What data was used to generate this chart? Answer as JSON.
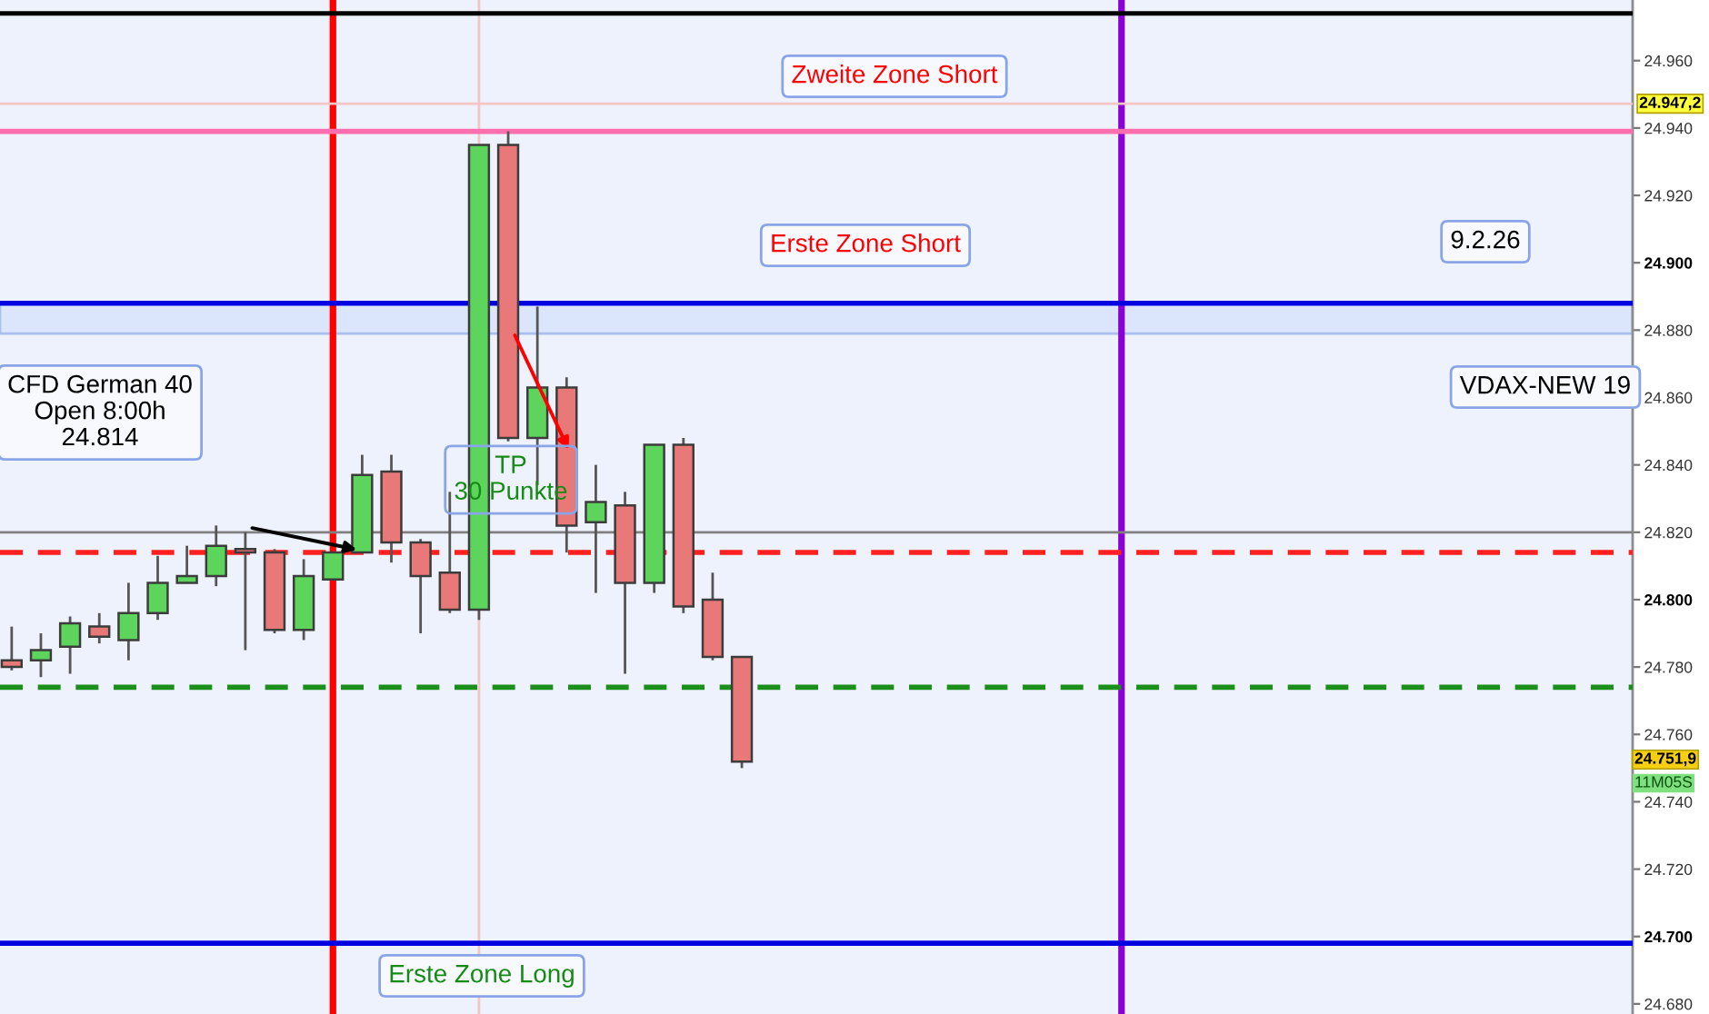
{
  "chart_data": {
    "type": "candlestick",
    "categories": [
      null,
      null,
      null,
      null,
      null,
      null,
      null,
      null,
      null,
      null,
      null,
      null,
      null,
      null,
      null,
      null,
      null,
      null,
      null,
      null,
      null,
      null,
      null,
      null,
      null,
      null,
      null,
      null,
      null,
      null,
      null,
      null,
      null,
      null,
      null,
      null,
      null,
      null,
      null,
      null,
      null,
      null,
      null,
      null,
      null,
      null,
      null,
      null,
      null,
      null,
      null,
      null,
      null,
      null,
      null,
      null
    ],
    "ohlc": [
      [
        24782,
        24792,
        24779,
        24780
      ],
      [
        24782,
        24790,
        24777,
        24785
      ],
      [
        24786,
        24795,
        24778,
        24793
      ],
      [
        24792,
        24796,
        24787,
        24789
      ],
      [
        24788,
        24805,
        24782,
        24796
      ],
      [
        24796,
        24813,
        24794,
        24805
      ],
      [
        24805,
        24816,
        24805,
        24807
      ],
      [
        24807,
        24822,
        24804,
        24816
      ],
      [
        24815,
        24820,
        24785,
        24814
      ],
      [
        24814,
        24815,
        24790,
        24791
      ],
      [
        24791,
        24812,
        24788,
        24807
      ],
      [
        24806,
        24814,
        24806,
        24814
      ],
      [
        24814,
        24843,
        24814,
        24837
      ],
      [
        24838,
        24843,
        24811,
        24817
      ],
      [
        24817,
        24818,
        24790,
        24807
      ],
      [
        24808,
        24832,
        24796,
        24797
      ],
      [
        24797,
        24935,
        24794,
        24935
      ],
      [
        24935,
        24939,
        24847,
        24848
      ],
      [
        24848,
        24887,
        24834,
        24863
      ],
      [
        24863,
        24866,
        24814,
        24822
      ],
      [
        24823,
        24840,
        24802,
        24829
      ],
      [
        24828,
        24832,
        24778,
        24805
      ],
      [
        24805,
        24846,
        24802,
        24846
      ],
      [
        24846,
        24848,
        24796,
        24798
      ],
      [
        24800,
        24808,
        24782,
        24783
      ],
      [
        24783,
        24783,
        24750,
        24751.9
      ],
      null,
      null,
      null,
      null,
      null,
      null,
      null,
      null,
      null,
      null,
      null,
      null,
      null,
      null,
      null,
      null,
      null,
      null,
      null,
      null,
      null,
      null,
      null,
      null,
      null,
      null,
      null,
      null,
      null,
      null
    ],
    "colors": [
      "#e97878",
      "#5dd55d",
      "#5dd55d",
      "#e97878",
      "#5dd55d",
      "#5dd55d",
      "#5dd55d",
      "#5dd55d",
      "#e97878",
      "#e97878",
      "#5dd55d",
      "#5dd55d",
      "#5dd55d",
      "#e97878",
      "#e97878",
      "#e97878",
      "#5dd55d",
      "#e97878",
      "#5dd55d",
      "#e97878",
      "#5dd55d",
      "#e97878",
      "#5dd55d",
      "#e97878",
      "#e97878",
      "#e97878",
      null,
      null,
      null,
      null,
      null,
      null,
      null,
      null,
      null,
      null,
      null,
      null,
      null,
      null,
      null,
      null,
      null,
      null,
      null,
      null,
      null,
      null,
      null,
      null,
      null,
      null,
      null,
      null,
      null,
      null
    ],
    "ylim": [
      24677,
      24978
    ],
    "yticks": [
      {
        "value": 24680,
        "label": "24.680"
      },
      {
        "value": 24700,
        "label": "24.700"
      },
      {
        "value": 24720,
        "label": "24.720"
      },
      {
        "value": 24740,
        "label": "24.740"
      },
      {
        "value": 24760,
        "label": "24.760"
      },
      {
        "value": 24780,
        "label": "24.780"
      },
      {
        "value": 24800,
        "label": "24.800"
      },
      {
        "value": 24820,
        "label": "24.820"
      },
      {
        "value": 24840,
        "label": "24.840"
      },
      {
        "value": 24860,
        "label": "24.860"
      },
      {
        "value": 24880,
        "label": "24.880"
      },
      {
        "value": 24900,
        "label": "24.900"
      },
      {
        "value": 24920,
        "label": "24.920"
      },
      {
        "value": 24940,
        "label": "24.940"
      },
      {
        "value": 24960,
        "label": "24.960"
      }
    ],
    "tick_labels": "y",
    "ref_lines": [
      {
        "axis": "y",
        "value": 24974,
        "color": "#000000"
      },
      {
        "axis": "y",
        "value": 24947.2,
        "label": "24.947,2",
        "color": "#f5c4c4"
      },
      {
        "axis": "y",
        "value": 24939,
        "label": "Zweite Zone Short",
        "color": "#ff6fae"
      },
      {
        "axis": "y",
        "value": 24888,
        "label": "Erste Zone Short",
        "color": "#0000e0"
      },
      {
        "axis": "y",
        "value": 24820,
        "color": "#808080"
      },
      {
        "axis": "y",
        "value": 24814,
        "color": "#ff1f1f",
        "line_style": "dashed"
      },
      {
        "axis": "y",
        "value": 24774,
        "color": "#1a8f1a",
        "line_style": "dashed"
      },
      {
        "axis": "y",
        "value": 24698,
        "label": "Erste Zone Long",
        "color": "#0000e0"
      }
    ],
    "bands": [
      {
        "axis": "y",
        "from": 24879,
        "to": 24888,
        "color": "#dbe5fb"
      }
    ],
    "annotations": [
      "CFD German 40\nOpen 8:00h\n24.814",
      "TP\n30 Punkte",
      "9.2.26",
      "VDAX-NEW 19",
      "24.751,9",
      "11M05S"
    ]
  }
}
